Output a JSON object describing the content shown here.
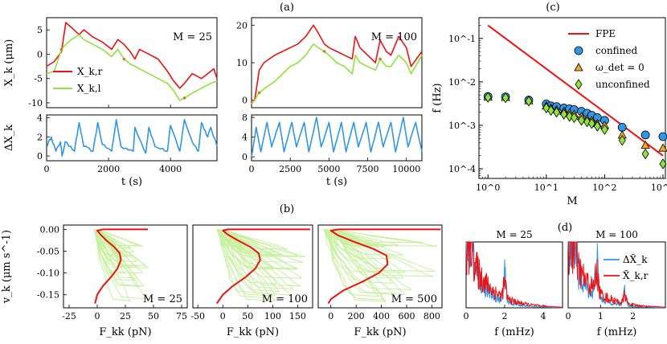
{
  "figure_labels": {
    "a": "(a)",
    "b": "(b)",
    "c": "(c)",
    "d": "(d)"
  },
  "colors": {
    "red": "#ee1111",
    "green": "#8fe33a",
    "blue": "#2f96e8",
    "lightgreen": "#c8f0a0",
    "orange": "#f5a623"
  },
  "chart_data": [
    {
      "id": "a1",
      "type": "line",
      "panel": "(a)",
      "annotation": "M = 25",
      "xlim": [
        0,
        5500
      ],
      "ylim": [
        -11,
        7.5
      ],
      "xticks": [
        0,
        2000,
        4000
      ],
      "yticks": [
        -10,
        -5,
        0,
        5
      ],
      "ylabel": "X_k (μm)",
      "legend": [
        "X_k,r",
        "X_k,l"
      ],
      "series": [
        {
          "name": "X_k,r",
          "x": [
            0,
            250,
            480,
            620,
            800,
            1050,
            1200,
            1500,
            1800,
            2100,
            2300,
            2500,
            2700,
            2850,
            3000,
            3300,
            3600,
            3900,
            4100,
            4300,
            4450,
            4700,
            5000,
            5300,
            5400,
            5500
          ],
          "y": [
            -2.5,
            -1.5,
            0.5,
            6.5,
            5.5,
            4,
            5,
            3.5,
            2.5,
            1,
            3,
            2,
            0.5,
            -1,
            1,
            0,
            -1,
            -3.5,
            -5.5,
            -7,
            -6,
            -4,
            -5,
            -3.5,
            -3,
            -5
          ]
        },
        {
          "name": "X_k,l",
          "x": [
            0,
            250,
            480,
            620,
            800,
            1050,
            1200,
            1500,
            1800,
            2100,
            2300,
            2500,
            2700,
            2850,
            3000,
            3300,
            3600,
            3900,
            4100,
            4300,
            4450,
            4700,
            5000,
            5300,
            5500
          ],
          "y": [
            -4,
            -3.5,
            1,
            2,
            3,
            4,
            3,
            2,
            1,
            -0.5,
            1,
            -1,
            -2,
            -2.5,
            -3,
            -4,
            -5,
            -6,
            -7.5,
            -9.5,
            -9,
            -8,
            -7,
            -6,
            -5.5
          ]
        }
      ]
    },
    {
      "id": "a2",
      "type": "line",
      "panel": "(a)",
      "annotation": "M = 100",
      "xlim": [
        0,
        11000
      ],
      "ylim": [
        -2,
        22
      ],
      "xticks": [],
      "yticks": [
        0,
        10,
        20
      ],
      "series": [
        {
          "name": "X_k,r",
          "x": [
            0,
            200,
            500,
            800,
            1500,
            2000,
            2500,
            3000,
            3500,
            4000,
            4300,
            4700,
            5000,
            5500,
            6000,
            6500,
            6700,
            7000,
            7500,
            8000,
            8300,
            8700,
            9000,
            9500,
            10000,
            10300,
            11000
          ],
          "y": [
            0,
            0,
            8,
            10,
            12,
            13,
            14,
            15,
            17,
            20,
            18,
            15,
            14,
            13,
            12,
            11,
            17,
            14,
            12,
            10,
            16,
            13,
            12,
            17,
            14,
            9,
            13
          ]
        },
        {
          "name": "X_k,l",
          "x": [
            0,
            200,
            500,
            800,
            1500,
            2000,
            2500,
            3000,
            3500,
            4000,
            4300,
            4700,
            5000,
            5500,
            6000,
            6500,
            6700,
            7000,
            7500,
            8000,
            8300,
            8700,
            9000,
            9500,
            10000,
            10300,
            11000
          ],
          "y": [
            -1,
            0,
            2,
            3,
            5,
            7,
            9,
            10,
            12,
            15,
            14,
            13,
            12,
            10,
            9,
            7,
            12,
            10,
            9,
            8,
            11,
            9,
            9,
            12,
            10,
            7,
            12
          ]
        }
      ]
    },
    {
      "id": "a3",
      "type": "line",
      "panel": "(a)",
      "xlim": [
        0,
        5500
      ],
      "ylim": [
        -0.5,
        4.3
      ],
      "xticks": [
        0,
        2000,
        4000
      ],
      "yticks": [
        0,
        2,
        4
      ],
      "xlabel": "t (s)",
      "ylabel": "ΔX_k",
      "series": [
        {
          "name": "ΔX_k",
          "x": [
            0,
            150,
            300,
            450,
            500,
            600,
            900,
            1050,
            1200,
            1500,
            1650,
            1800,
            2100,
            2250,
            2400,
            2800,
            2850,
            3200,
            3300,
            3500,
            3900,
            4000,
            4300,
            4450,
            4700,
            4900,
            5000,
            5200,
            5300,
            5500
          ],
          "y": [
            1,
            2,
            0.5,
            1.5,
            0,
            1.5,
            0.5,
            3.5,
            1,
            0.5,
            3.5,
            1.2,
            0.5,
            3.8,
            1,
            0.5,
            3,
            0.3,
            3,
            1,
            0.5,
            3.2,
            0.5,
            3.8,
            1.5,
            0.5,
            3.5,
            2,
            3,
            1
          ]
        }
      ]
    },
    {
      "id": "a4",
      "type": "line",
      "panel": "(a)",
      "xlim": [
        0,
        11000
      ],
      "ylim": [
        -0.8,
        8.5
      ],
      "xticks": [
        0,
        2500,
        5000,
        7500,
        10000
      ],
      "yticks": [
        0,
        4,
        8
      ],
      "xlabel": "t (s)",
      "series": [
        {
          "name": "ΔX_k",
          "x": [
            0,
            300,
            600,
            1000,
            1300,
            1800,
            2100,
            2600,
            2900,
            3400,
            3700,
            4200,
            4500,
            5000,
            5300,
            5800,
            6100,
            6600,
            6900,
            7400,
            7700,
            8200,
            8500,
            9000,
            9300,
            9800,
            10100,
            10600,
            11000
          ],
          "y": [
            0,
            6,
            1,
            7,
            2,
            7,
            1,
            7,
            2,
            7,
            1,
            8,
            2,
            7,
            1,
            7,
            1,
            7,
            2,
            7,
            1,
            7,
            2,
            7,
            1,
            8,
            2,
            7,
            1
          ]
        }
      ]
    },
    {
      "id": "b1",
      "type": "line",
      "panel": "(b)",
      "annotation": "M = 25",
      "xlim": [
        -30,
        80
      ],
      "ylim": [
        -0.18,
        0.01
      ],
      "xticks": [
        -25,
        0,
        25,
        50,
        75
      ],
      "yticks": [
        0.0,
        -0.05,
        -0.1,
        -0.15
      ],
      "xlabel": "F_kk (pN)",
      "ylabel": "v_k (μm s^-1)",
      "series": [
        {
          "name": "FPE",
          "x": [
            -2,
            0,
            5,
            12,
            18,
            21,
            20,
            15,
            8,
            3,
            0,
            5,
            15,
            25,
            45
          ],
          "y": [
            -0.17,
            -0.15,
            -0.13,
            -0.11,
            -0.09,
            -0.07,
            -0.055,
            -0.04,
            -0.025,
            -0.012,
            -0.003,
            0,
            0,
            0,
            0
          ]
        }
      ]
    },
    {
      "id": "b2",
      "type": "line",
      "panel": "(b)",
      "annotation": "M = 100",
      "xlim": [
        -60,
        180
      ],
      "ylim": [
        -0.18,
        0.01
      ],
      "xticks": [
        -50,
        0,
        50,
        100,
        150
      ],
      "yticks": [],
      "xlabel": "F_kk (pN)",
      "series": [
        {
          "name": "FPE",
          "x": [
            -12,
            0,
            20,
            45,
            65,
            75,
            72,
            55,
            30,
            10,
            0,
            10,
            40,
            80,
            175
          ],
          "y": [
            -0.17,
            -0.15,
            -0.13,
            -0.11,
            -0.09,
            -0.07,
            -0.055,
            -0.04,
            -0.025,
            -0.012,
            -0.003,
            0,
            0,
            0,
            0
          ]
        }
      ]
    },
    {
      "id": "b3",
      "type": "line",
      "panel": "(b)",
      "annotation": "M = 500",
      "xlim": [
        -100,
        880
      ],
      "ylim": [
        -0.18,
        0.01
      ],
      "xticks": [
        0,
        200,
        400,
        600,
        800
      ],
      "yticks": [],
      "xlabel": "F_kk (pN)",
      "series": [
        {
          "name": "FPE",
          "x": [
            -20,
            0,
            100,
            250,
            380,
            450,
            440,
            340,
            180,
            60,
            0,
            60,
            250,
            500,
            870
          ],
          "y": [
            -0.17,
            -0.16,
            -0.14,
            -0.12,
            -0.1,
            -0.08,
            -0.06,
            -0.045,
            -0.028,
            -0.014,
            -0.003,
            0,
            0,
            0,
            0
          ]
        }
      ]
    },
    {
      "id": "c",
      "type": "scatter",
      "panel": "(c)",
      "xscale": "log",
      "yscale": "log",
      "xlim": [
        0.7,
        1100
      ],
      "ylim": [
        6e-05,
        0.3
      ],
      "xtick_labels": [
        "10^0",
        "10^1",
        "10^2",
        "10^3"
      ],
      "ytick_labels": [
        "10^-4",
        "10^-3",
        "10^-2",
        "10^-1"
      ],
      "xlabel": "M",
      "ylabel": "f (Hz)",
      "legend": [
        "FPE",
        "confined",
        "ω_det = 0",
        "unconfined"
      ],
      "series": [
        {
          "name": "FPE",
          "type": "line",
          "x": [
            1,
            1000
          ],
          "y": [
            0.2,
            0.0002
          ]
        },
        {
          "name": "confined",
          "x": [
            1,
            2,
            5,
            10,
            12,
            15,
            20,
            25,
            30,
            40,
            50,
            60,
            75,
            100,
            200,
            500,
            1000
          ],
          "y": [
            0.0046,
            0.0045,
            0.0038,
            0.0031,
            0.0028,
            0.0027,
            0.0025,
            0.0024,
            0.0023,
            0.0021,
            0.0019,
            0.0017,
            0.0015,
            0.0013,
            0.0009,
            0.0006,
            0.00055
          ]
        },
        {
          "name": "ω_det = 0",
          "x": [
            1,
            2,
            5,
            10,
            12,
            15,
            20,
            25,
            30,
            40,
            50,
            60,
            75,
            100,
            200,
            500,
            1000
          ],
          "y": [
            0.0045,
            0.0044,
            0.0037,
            0.0028,
            0.0025,
            0.0023,
            0.0021,
            0.0019,
            0.0018,
            0.0016,
            0.0014,
            0.0013,
            0.0011,
            0.001,
            0.0006,
            0.00035,
            0.0003
          ]
        },
        {
          "name": "unconfined",
          "x": [
            1,
            2,
            5,
            10,
            12,
            15,
            20,
            25,
            30,
            40,
            50,
            60,
            75,
            100,
            200,
            500,
            1000
          ],
          "y": [
            0.0044,
            0.0043,
            0.0036,
            0.0025,
            0.0022,
            0.002,
            0.0018,
            0.0016,
            0.0015,
            0.0013,
            0.0012,
            0.0011,
            0.00095,
            0.0008,
            0.00045,
            0.00022,
            0.00013
          ]
        }
      ]
    },
    {
      "id": "d1",
      "type": "line",
      "panel": "(d)",
      "title": "M = 25",
      "xlim": [
        0,
        5
      ],
      "xticks": [
        0,
        2,
        4
      ],
      "xlabel": "f (mHz)",
      "peaks": [
        {
          "x": 0.3,
          "h": 0.95
        },
        {
          "x": 2.0,
          "h": 0.6
        }
      ]
    },
    {
      "id": "d2",
      "type": "line",
      "panel": "(d)",
      "title": "M = 100",
      "xlim": [
        0,
        3
      ],
      "xticks": [
        0,
        1,
        2
      ],
      "xlabel": "f (mHz)",
      "legend": [
        "ΔX̃_k",
        "X̃_k,r"
      ],
      "peaks": [
        {
          "x": 0.2,
          "h": 0.95
        },
        {
          "x": 0.88,
          "h": 0.85
        },
        {
          "x": 1.75,
          "h": 0.35
        }
      ]
    }
  ]
}
